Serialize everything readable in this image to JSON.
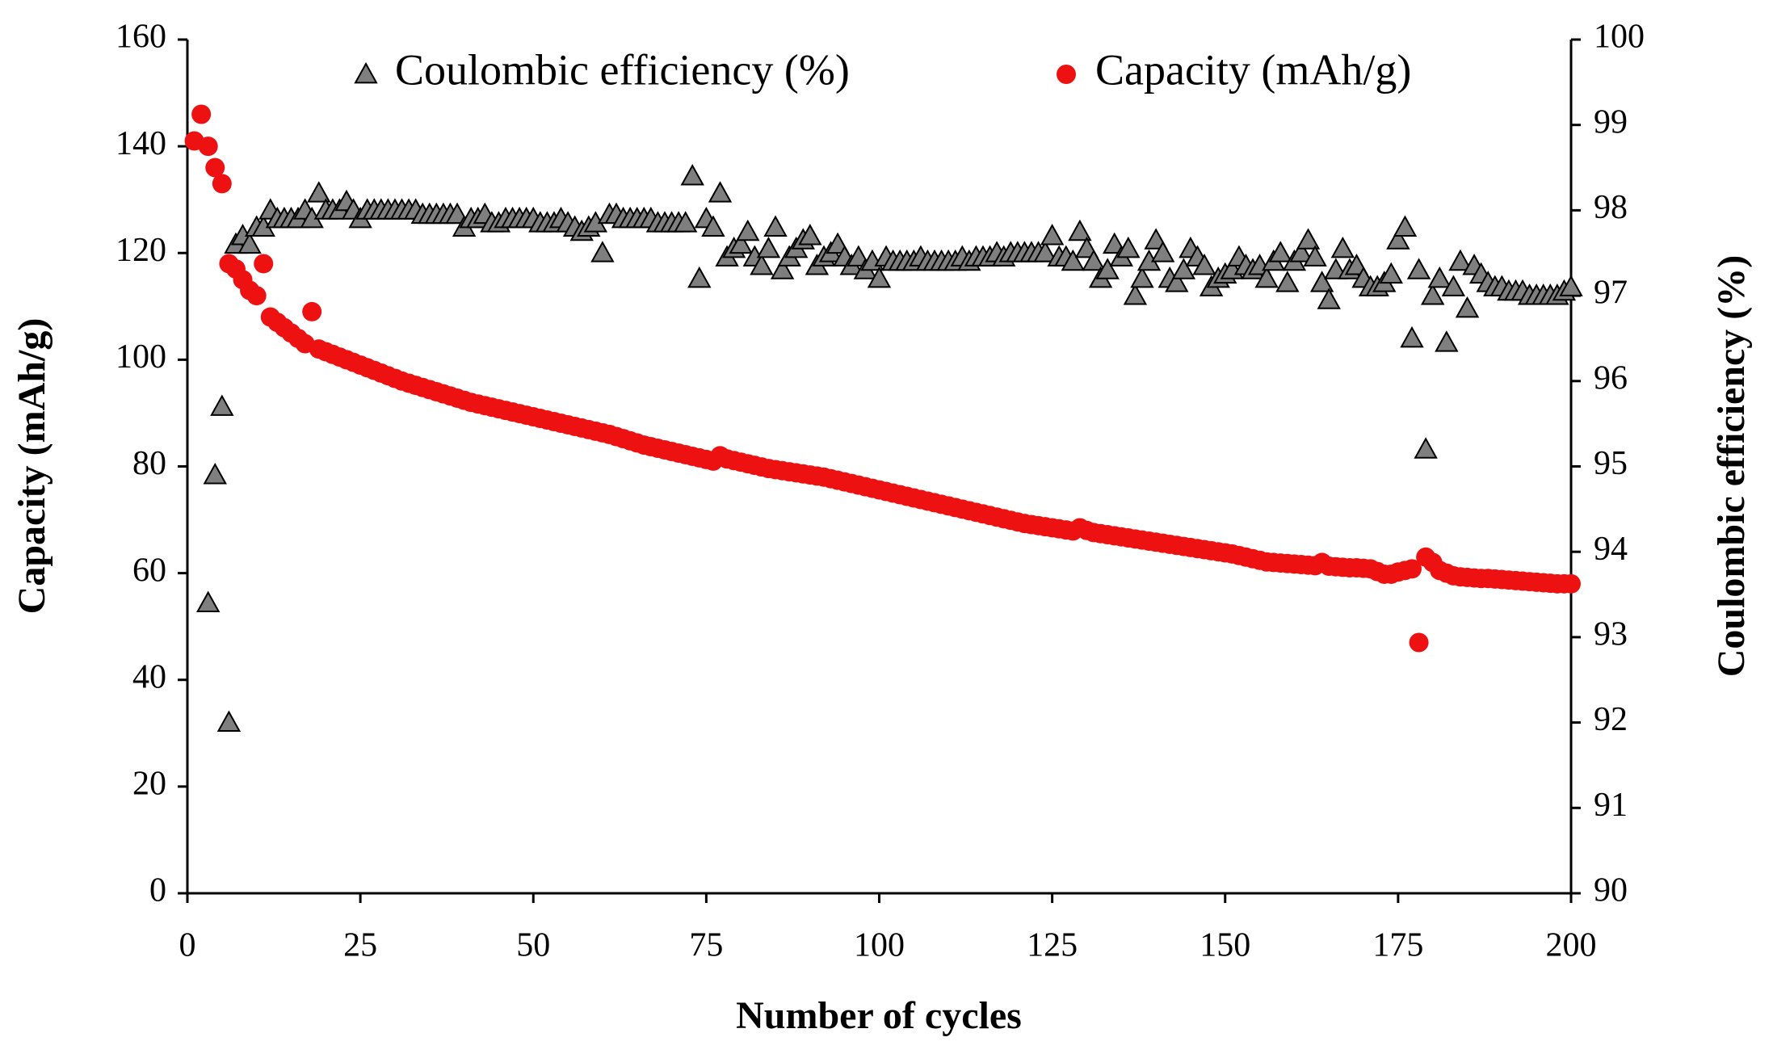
{
  "chart_data": {
    "type": "scatter",
    "xlabel": "Number of cycles",
    "ylabel": "Capacity (mAh/g)",
    "y2label": "Coulombic efficiency (%)",
    "xlim": [
      0,
      200
    ],
    "xticks": [
      0,
      25,
      50,
      75,
      100,
      125,
      150,
      175,
      200
    ],
    "ylim": [
      0,
      160
    ],
    "yticks": [
      0,
      20,
      40,
      60,
      80,
      100,
      120,
      140,
      160
    ],
    "y2lim": [
      90,
      100
    ],
    "y2ticks": [
      90,
      91,
      92,
      93,
      94,
      95,
      96,
      97,
      98,
      99,
      100
    ],
    "legend": "top",
    "x": [
      1,
      2,
      3,
      4,
      5,
      6,
      7,
      8,
      9,
      10,
      11,
      12,
      13,
      14,
      15,
      16,
      17,
      18,
      19,
      20,
      21,
      22,
      23,
      24,
      25,
      26,
      27,
      28,
      29,
      30,
      31,
      32,
      33,
      34,
      35,
      36,
      37,
      38,
      39,
      40,
      41,
      42,
      43,
      44,
      45,
      46,
      47,
      48,
      49,
      50,
      51,
      52,
      53,
      54,
      55,
      56,
      57,
      58,
      59,
      60,
      61,
      62,
      63,
      64,
      65,
      66,
      67,
      68,
      69,
      70,
      71,
      72,
      73,
      74,
      75,
      76,
      77,
      78,
      79,
      80,
      81,
      82,
      83,
      84,
      85,
      86,
      87,
      88,
      89,
      90,
      91,
      92,
      93,
      94,
      95,
      96,
      97,
      98,
      99,
      100,
      101,
      102,
      103,
      104,
      105,
      106,
      107,
      108,
      109,
      110,
      111,
      112,
      113,
      114,
      115,
      116,
      117,
      118,
      119,
      120,
      121,
      122,
      123,
      124,
      125,
      126,
      127,
      128,
      129,
      130,
      131,
      132,
      133,
      134,
      135,
      136,
      137,
      138,
      139,
      140,
      141,
      142,
      143,
      144,
      145,
      146,
      147,
      148,
      149,
      150,
      151,
      152,
      153,
      154,
      155,
      156,
      157,
      158,
      159,
      160,
      161,
      162,
      163,
      164,
      165,
      166,
      167,
      168,
      169,
      170,
      171,
      172,
      173,
      174,
      175,
      176,
      177,
      178,
      179,
      180,
      181,
      182,
      183,
      184,
      185,
      186,
      187,
      188,
      189,
      190,
      191,
      192,
      193,
      194,
      195,
      196,
      197,
      198,
      199,
      200
    ],
    "series": [
      {
        "name": "Coulombic efficiency (%)",
        "axis": "y2",
        "marker": "triangle",
        "color": "#7f7f7f",
        "values": [
          null,
          null,
          93.4,
          94.9,
          95.7,
          92.0,
          97.6,
          97.7,
          97.6,
          97.8,
          97.8,
          98.0,
          97.9,
          97.9,
          97.9,
          97.9,
          98.0,
          97.9,
          98.2,
          98.0,
          98.0,
          98.0,
          98.1,
          98.0,
          97.9,
          98.0,
          98.0,
          98.0,
          98.0,
          98.0,
          98.0,
          98.0,
          98.0,
          97.95,
          97.95,
          97.95,
          97.95,
          97.95,
          97.95,
          97.8,
          97.9,
          97.9,
          97.95,
          97.85,
          97.85,
          97.9,
          97.9,
          97.9,
          97.9,
          97.9,
          97.85,
          97.85,
          97.85,
          97.9,
          97.85,
          97.8,
          97.75,
          97.8,
          97.85,
          97.5,
          97.95,
          97.95,
          97.9,
          97.9,
          97.9,
          97.9,
          97.9,
          97.85,
          97.85,
          97.85,
          97.85,
          97.85,
          98.4,
          97.2,
          97.9,
          97.8,
          98.2,
          97.45,
          97.55,
          97.6,
          97.75,
          97.45,
          97.35,
          97.55,
          97.8,
          97.3,
          97.45,
          97.55,
          97.65,
          97.7,
          97.35,
          97.45,
          97.5,
          97.6,
          97.45,
          97.35,
          97.45,
          97.3,
          97.4,
          97.2,
          97.45,
          97.4,
          97.4,
          97.4,
          97.4,
          97.45,
          97.4,
          97.4,
          97.4,
          97.4,
          97.4,
          97.45,
          97.4,
          97.45,
          97.45,
          97.45,
          97.5,
          97.45,
          97.5,
          97.5,
          97.5,
          97.5,
          97.5,
          97.5,
          97.7,
          97.45,
          97.45,
          97.4,
          97.75,
          97.55,
          97.4,
          97.2,
          97.3,
          97.6,
          97.45,
          97.55,
          97.0,
          97.2,
          97.4,
          97.65,
          97.5,
          97.2,
          97.15,
          97.3,
          97.55,
          97.45,
          97.35,
          97.1,
          97.2,
          97.25,
          97.3,
          97.45,
          97.35,
          97.3,
          97.35,
          97.2,
          97.4,
          97.5,
          97.15,
          97.4,
          97.5,
          97.65,
          97.45,
          97.15,
          96.95,
          97.3,
          97.55,
          97.3,
          97.35,
          97.2,
          97.1,
          97.1,
          97.15,
          97.25,
          97.65,
          97.8,
          96.5,
          97.3,
          95.2,
          97.0,
          97.2,
          96.45,
          97.1,
          97.4,
          96.85,
          97.35,
          97.25,
          97.15,
          97.1,
          97.1,
          97.05,
          97.05,
          97.05,
          97.0,
          97.0,
          97.0,
          97.0,
          97.0,
          97.05,
          97.1
        ]
      },
      {
        "name": "Capacity (mAh/g)",
        "axis": "y",
        "marker": "circle",
        "color": "#ee1111",
        "values": [
          141,
          146,
          140,
          136,
          133,
          118,
          117,
          115,
          113,
          112,
          118,
          108,
          107,
          106,
          105,
          104,
          103,
          109,
          102,
          101.5,
          101,
          100.5,
          100,
          99.5,
          99,
          98.5,
          98,
          97.5,
          97,
          96.5,
          96,
          95.6,
          95.2,
          94.8,
          94.4,
          94,
          93.6,
          93.2,
          92.8,
          92.4,
          92,
          91.7,
          91.4,
          91.1,
          90.8,
          90.5,
          90.2,
          89.9,
          89.6,
          89.3,
          89,
          88.7,
          88.4,
          88.1,
          87.8,
          87.5,
          87.2,
          86.9,
          86.6,
          86.3,
          86,
          85.6,
          85.2,
          84.8,
          84.4,
          84,
          83.7,
          83.4,
          83.1,
          82.8,
          82.5,
          82.2,
          81.9,
          81.6,
          81.3,
          81,
          82,
          81.4,
          81.1,
          80.8,
          80.5,
          80.2,
          79.9,
          79.6,
          79.4,
          79.2,
          79,
          78.8,
          78.6,
          78.4,
          78.2,
          78,
          77.7,
          77.4,
          77.1,
          76.8,
          76.5,
          76.2,
          75.9,
          75.6,
          75.3,
          75,
          74.7,
          74.4,
          74.1,
          73.8,
          73.5,
          73.2,
          72.9,
          72.6,
          72.3,
          72,
          71.7,
          71.4,
          71.1,
          70.8,
          70.5,
          70.2,
          69.9,
          69.6,
          69.3,
          69.1,
          68.9,
          68.7,
          68.5,
          68.3,
          68.1,
          67.9,
          68.5,
          68,
          67.6,
          67.4,
          67.2,
          67,
          66.8,
          66.6,
          66.4,
          66.2,
          66,
          65.8,
          65.6,
          65.4,
          65.2,
          65,
          64.8,
          64.6,
          64.4,
          64.2,
          64,
          63.8,
          63.6,
          63.3,
          63,
          62.7,
          62.4,
          62.1,
          62,
          61.9,
          61.8,
          61.7,
          61.6,
          61.5,
          61.4,
          62,
          61.3,
          61.2,
          61.1,
          61,
          61,
          60.9,
          60.8,
          60.3,
          59.8,
          59.8,
          60.2,
          60.5,
          60.8,
          47,
          63,
          62,
          60.5,
          60,
          59.5,
          59.3,
          59.2,
          59.1,
          59,
          59,
          58.9,
          58.8,
          58.7,
          58.6,
          58.5,
          58.4,
          58.3,
          58.2,
          58.1,
          58,
          58,
          58
        ]
      }
    ]
  }
}
